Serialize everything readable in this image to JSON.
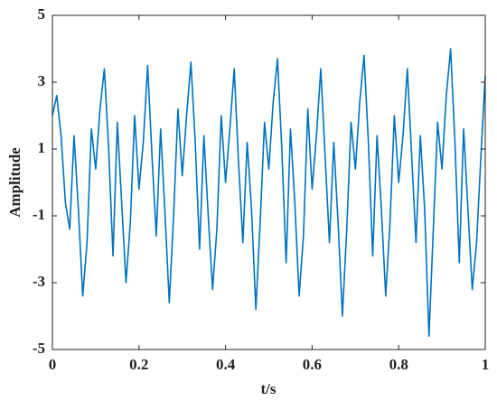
{
  "chart_data": {
    "type": "line",
    "x_label": "t/s",
    "y_label": "Amplitude",
    "x": [
      0,
      0.01,
      0.02,
      0.03,
      0.04,
      0.05,
      0.06,
      0.07,
      0.08,
      0.09,
      0.1,
      0.11,
      0.12,
      0.13,
      0.14,
      0.15,
      0.16,
      0.17,
      0.18,
      0.19,
      0.2,
      0.21,
      0.22,
      0.23,
      0.24,
      0.25,
      0.26,
      0.27,
      0.28,
      0.29,
      0.3,
      0.31,
      0.32,
      0.33,
      0.34,
      0.35,
      0.36,
      0.37,
      0.38,
      0.39,
      0.4,
      0.41,
      0.42,
      0.43,
      0.44,
      0.45,
      0.46,
      0.47,
      0.48,
      0.49,
      0.5,
      0.51,
      0.52,
      0.53,
      0.54,
      0.55,
      0.56,
      0.57,
      0.58,
      0.59,
      0.6,
      0.61,
      0.62,
      0.63,
      0.64,
      0.65,
      0.66,
      0.67,
      0.68,
      0.69,
      0.7,
      0.71,
      0.72,
      0.73,
      0.74,
      0.75,
      0.76,
      0.77,
      0.78,
      0.79,
      0.8,
      0.81,
      0.82,
      0.83,
      0.84,
      0.85,
      0.86,
      0.87,
      0.88,
      0.89,
      0.9,
      0.91,
      0.92,
      0.93,
      0.94,
      0.95,
      0.96,
      0.97,
      0.98,
      0.99,
      1
    ],
    "values": [
      2.0,
      2.6,
      1.4,
      -0.6,
      -1.4,
      1.4,
      -0.8,
      -3.4,
      -1.8,
      1.6,
      0.4,
      2.2,
      3.4,
      1.0,
      -2.2,
      1.8,
      -0.6,
      -3.0,
      -1.2,
      2.0,
      -0.2,
      1.2,
      3.5,
      0.8,
      -1.6,
      1.6,
      -0.9,
      -3.6,
      -1.0,
      2.2,
      0.2,
      2.0,
      3.6,
      1.2,
      -2.0,
      1.4,
      -1.0,
      -3.2,
      -1.4,
      2.0,
      0.0,
      1.6,
      3.4,
      0.6,
      -1.8,
      1.2,
      -0.8,
      -3.8,
      -1.2,
      1.8,
      0.4,
      2.4,
      3.7,
      1.0,
      -2.4,
      1.6,
      -0.6,
      -3.4,
      -1.6,
      2.2,
      -0.2,
      1.4,
      3.4,
      0.8,
      -1.8,
      1.2,
      -1.2,
      -4.0,
      -1.4,
      1.8,
      0.4,
      2.4,
      3.8,
      1.2,
      -2.2,
      1.4,
      -0.8,
      -3.4,
      -1.2,
      2.0,
      0.0,
      1.4,
      3.4,
      0.8,
      -1.8,
      1.4,
      -0.8,
      -4.6,
      -1.4,
      1.8,
      0.4,
      2.6,
      4.0,
      1.2,
      -2.4,
      1.6,
      -0.8,
      -3.2,
      -1.8,
      0.8,
      3.2
    ],
    "color": "#0072bd",
    "xlim": [
      0,
      1
    ],
    "xticks": [
      0,
      0.2,
      0.4,
      0.6,
      0.8,
      1
    ],
    "ylim": [
      -5,
      5
    ],
    "yticks": [
      -5,
      -3,
      -1,
      1,
      3,
      5
    ],
    "grid": false
  }
}
